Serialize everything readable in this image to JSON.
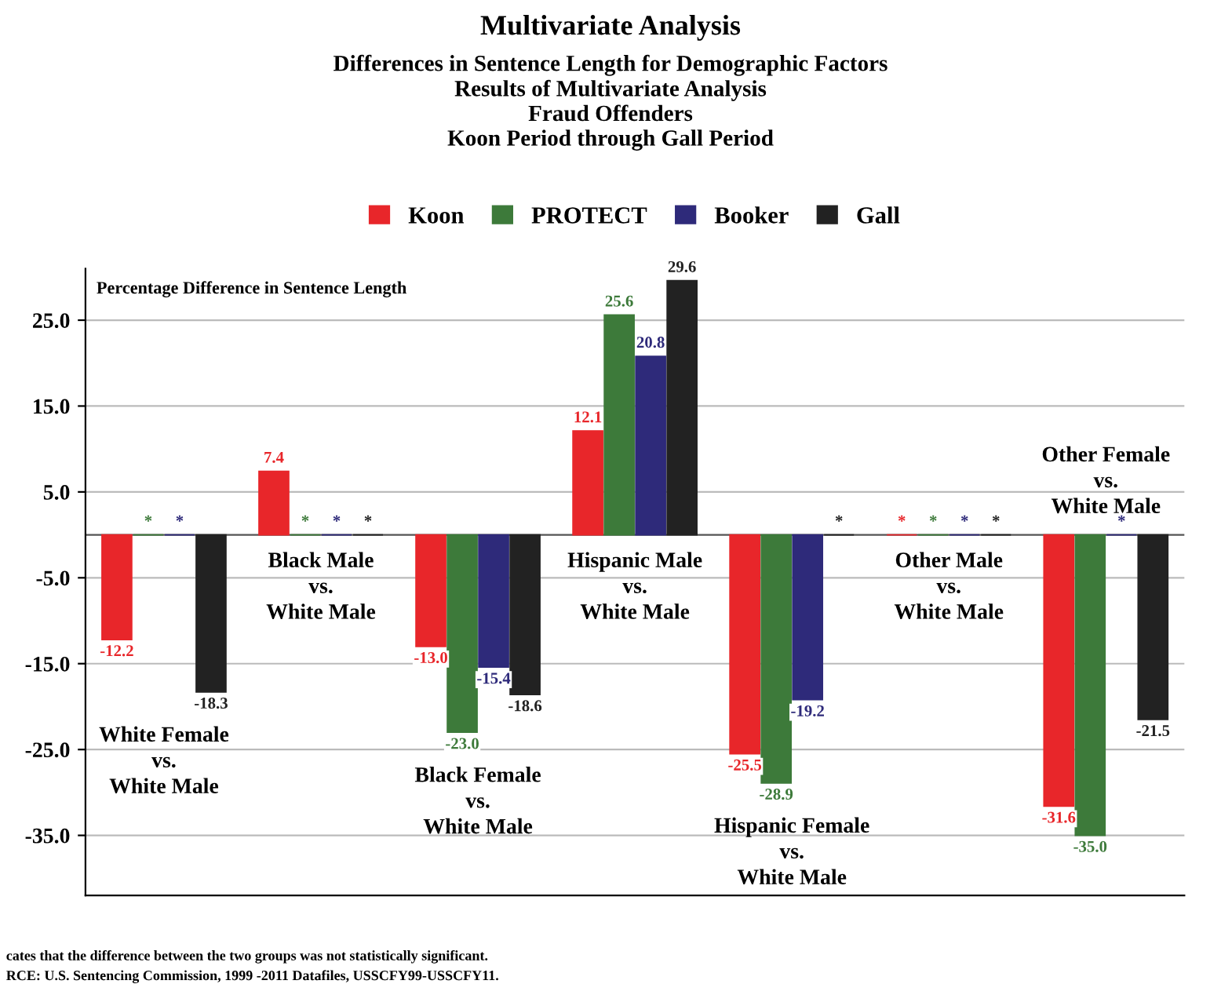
{
  "chart_data": {
    "type": "bar",
    "title": "Multivariate Analysis",
    "subtitle": "Differences in Sentence Length for Demographic Factors\nResults of Multivariate Analysis\nFraud Offenders\nKoon Period through Gall Period",
    "ylabel": "Percentage Difference in Sentence Length",
    "categories": [
      "White Female\nvs.\nWhite Male",
      "Black Male\nvs.\nWhite Male",
      "Black Female\nvs.\nWhite Male",
      "Hispanic Male\nvs.\nWhite Male",
      "Hispanic Female\nvs.\nWhite Male",
      "Other Male\nvs.\nWhite Male",
      "Other Female\nvs.\nWhite Male"
    ],
    "series": [
      {
        "name": "Koon",
        "color": "#e8262a",
        "values": [
          -12.2,
          7.4,
          -13.0,
          12.1,
          -25.5,
          0,
          -31.6
        ],
        "value_labels": [
          "-12.2",
          "7.4",
          "-13.0",
          "12.1",
          "-25.5",
          "*",
          "-31.6"
        ]
      },
      {
        "name": "PROTECT",
        "color": "#3d7a3a",
        "values": [
          0,
          0,
          -23.0,
          25.6,
          -28.9,
          0,
          -35.0
        ],
        "value_labels": [
          "*",
          "*",
          "-23.0",
          "25.6",
          "-28.9",
          "*",
          "-35.0"
        ]
      },
      {
        "name": "Booker",
        "color": "#2e2a7a",
        "values": [
          0,
          0,
          -15.4,
          20.8,
          -19.2,
          0,
          0
        ],
        "value_labels": [
          "*",
          "*",
          "-15.4",
          "20.8",
          "-19.2",
          "*",
          "*"
        ]
      },
      {
        "name": "Gall",
        "color": "#222222",
        "values": [
          -18.3,
          0,
          -18.6,
          29.6,
          0,
          0,
          -21.5
        ],
        "value_labels": [
          "-18.3",
          "*",
          "-18.6",
          "29.6",
          "*",
          "*",
          "-21.5"
        ]
      }
    ],
    "ylim": [
      -42,
      31
    ],
    "yticks": [
      {
        "value": -35,
        "label": "-35.0"
      },
      {
        "value": -25,
        "label": "-25.0"
      },
      {
        "value": -15,
        "label": "-15.0"
      },
      {
        "value": -5,
        "label": "-5.0"
      },
      {
        "value": 5,
        "label": "5.0"
      },
      {
        "value": 15,
        "label": "15.0"
      },
      {
        "value": 25,
        "label": "25.0"
      }
    ],
    "grid": "y",
    "legend": "top",
    "annotations": [
      "cates that the difference between the two groups was not statistically significant.",
      "RCE: U.S. Sentencing Commission, 1999 -2011 Datafiles, USSCFY99-USSCFY11."
    ]
  }
}
